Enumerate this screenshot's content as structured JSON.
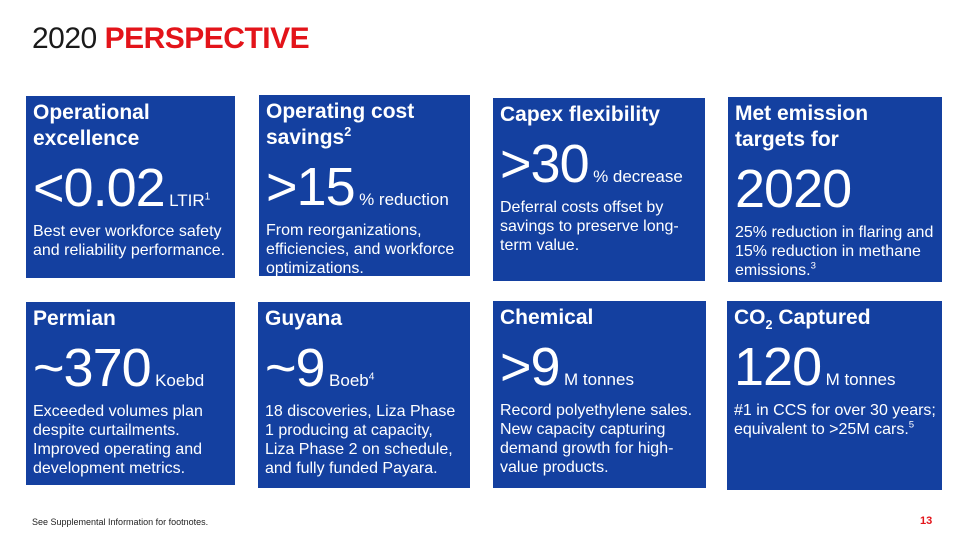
{
  "header": {
    "year": "2020",
    "highlight": "PERSPECTIVE"
  },
  "tiles": [
    {
      "heading": "Operational excellence",
      "heading_sup": "",
      "big": "<0.02",
      "unit": "LTIR",
      "unit_sup": "1",
      "desc": "Best ever workforce safety and reliability performance.",
      "desc_sup": ""
    },
    {
      "heading": "Operating cost savings",
      "heading_sup": "2",
      "big": ">15",
      "unit": "% reduction",
      "unit_sup": "",
      "desc": "From reorganizations, efficiencies, and workforce optimizations.",
      "desc_sup": ""
    },
    {
      "heading": "Capex flexibility",
      "heading_sup": "",
      "big": ">30",
      "unit": "% decrease",
      "unit_sup": "",
      "desc": "Deferral costs offset by savings to preserve long-term value.",
      "desc_sup": ""
    },
    {
      "heading": "Met emission targets for",
      "heading_sup": "",
      "big": "2020",
      "unit": "",
      "unit_sup": "",
      "desc": "25% reduction in flaring and 15% reduction in methane emissions.",
      "desc_sup": "3"
    },
    {
      "heading": "Permian",
      "heading_sup": "",
      "big": "~370",
      "unit": "Koebd",
      "unit_sup": "",
      "desc": "Exceeded volumes plan despite curtailments. Improved operating and development metrics.",
      "desc_sup": ""
    },
    {
      "heading": "Guyana",
      "heading_sup": "",
      "big": "~9",
      "unit": "Boeb",
      "unit_sup": "4",
      "desc": "18 discoveries, Liza Phase 1 producing at capacity, Liza Phase 2 on schedule, and fully funded Payara.",
      "desc_sup": ""
    },
    {
      "heading": "Chemical",
      "heading_sup": "",
      "big": ">9",
      "unit": "M tonnes",
      "unit_sup": "",
      "desc": "Record polyethylene sales. New capacity capturing demand growth for high-value products.",
      "desc_sup": ""
    },
    {
      "heading_pre": "CO",
      "heading_sub": "2",
      "heading_post": " Captured",
      "big": "120",
      "unit": "M tonnes",
      "unit_sup": "",
      "desc": "#1 in CCS for over 30 years; equivalent to >25M cars.",
      "desc_sup": "5"
    }
  ],
  "footer": {
    "note": "See Supplemental Information for footnotes.",
    "page": "13"
  },
  "colors": {
    "tile_bg": "#1440a0",
    "accent_red": "#e3141a"
  }
}
